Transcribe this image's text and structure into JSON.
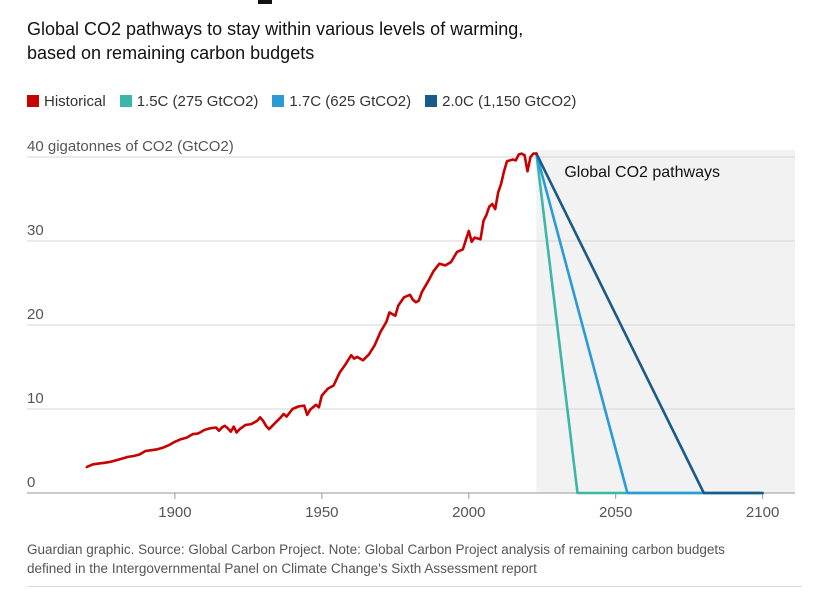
{
  "header": {
    "title_line1": "Global CO2 pathways to stay within various levels of warming,",
    "title_line2": "based on remaining carbon budgets"
  },
  "legend": [
    {
      "label": "Historical",
      "color": "#c70000"
    },
    {
      "label": "1.5C (275 GtCO2)",
      "color": "#3bb7a8"
    },
    {
      "label": "1.7C (625 GtCO2)",
      "color": "#2b9bd6"
    },
    {
      "label": "2.0C (1,150 GtCO2)",
      "color": "#1a5a8a"
    }
  ],
  "footer": {
    "line1": "Guardian graphic. Source: Global Carbon Project. Note: Global Carbon Project analysis of remaining carbon budgets",
    "line2": "defined in the Intergovernmental Panel on Climate Change's Sixth Assessment report"
  },
  "chart_data": {
    "type": "line",
    "ylabel": "40 gigatonnes of CO2 (GtCO2)",
    "y_ticks": [
      {
        "value": 40,
        "label": "40 gigatonnes of CO2 (GtCO2)"
      },
      {
        "value": 30,
        "label": "30"
      },
      {
        "value": 20,
        "label": "20"
      },
      {
        "value": 10,
        "label": "10"
      },
      {
        "value": 0,
        "label": "0"
      }
    ],
    "x_ticks": [
      {
        "value": 1900,
        "label": "1900"
      },
      {
        "value": 1950,
        "label": "1950"
      },
      {
        "value": 2000,
        "label": "2000"
      },
      {
        "value": 2050,
        "label": "2050"
      },
      {
        "value": 2100,
        "label": "2100"
      }
    ],
    "xlim": [
      1850,
      2110
    ],
    "ylim": [
      0,
      40
    ],
    "grid": true,
    "shaded_region": {
      "x_start": 2023,
      "x_end": 2110,
      "label": "Global CO2 pathways",
      "color": "#f2f2f2"
    },
    "series": [
      {
        "name": "Historical",
        "color": "#c70000",
        "points": [
          [
            1870,
            3.1
          ],
          [
            1872,
            3.4
          ],
          [
            1874,
            3.5
          ],
          [
            1876,
            3.6
          ],
          [
            1878,
            3.7
          ],
          [
            1880,
            3.9
          ],
          [
            1882,
            4.1
          ],
          [
            1884,
            4.3
          ],
          [
            1886,
            4.4
          ],
          [
            1888,
            4.6
          ],
          [
            1890,
            5.0
          ],
          [
            1892,
            5.1
          ],
          [
            1894,
            5.2
          ],
          [
            1896,
            5.4
          ],
          [
            1898,
            5.7
          ],
          [
            1900,
            6.1
          ],
          [
            1902,
            6.4
          ],
          [
            1904,
            6.6
          ],
          [
            1906,
            7.0
          ],
          [
            1908,
            7.1
          ],
          [
            1910,
            7.5
          ],
          [
            1912,
            7.7
          ],
          [
            1914,
            7.8
          ],
          [
            1915,
            7.4
          ],
          [
            1916,
            7.8
          ],
          [
            1917,
            8.0
          ],
          [
            1918,
            7.7
          ],
          [
            1919,
            7.3
          ],
          [
            1920,
            7.9
          ],
          [
            1921,
            7.2
          ],
          [
            1922,
            7.6
          ],
          [
            1924,
            8.1
          ],
          [
            1926,
            8.2
          ],
          [
            1928,
            8.6
          ],
          [
            1929,
            9.0
          ],
          [
            1930,
            8.6
          ],
          [
            1931,
            8.0
          ],
          [
            1932,
            7.6
          ],
          [
            1934,
            8.3
          ],
          [
            1936,
            9.0
          ],
          [
            1937,
            9.4
          ],
          [
            1938,
            9.1
          ],
          [
            1940,
            10.0
          ],
          [
            1942,
            10.3
          ],
          [
            1944,
            10.4
          ],
          [
            1945,
            9.3
          ],
          [
            1946,
            9.9
          ],
          [
            1948,
            10.5
          ],
          [
            1949,
            10.2
          ],
          [
            1950,
            11.6
          ],
          [
            1952,
            12.4
          ],
          [
            1954,
            12.8
          ],
          [
            1956,
            14.3
          ],
          [
            1958,
            15.3
          ],
          [
            1960,
            16.4
          ],
          [
            1961,
            16.0
          ],
          [
            1962,
            16.2
          ],
          [
            1964,
            15.8
          ],
          [
            1966,
            16.5
          ],
          [
            1968,
            17.6
          ],
          [
            1970,
            19.2
          ],
          [
            1972,
            20.4
          ],
          [
            1973,
            21.5
          ],
          [
            1974,
            21.3
          ],
          [
            1975,
            21.1
          ],
          [
            1976,
            22.3
          ],
          [
            1978,
            23.3
          ],
          [
            1980,
            23.6
          ],
          [
            1981,
            23.0
          ],
          [
            1982,
            22.7
          ],
          [
            1983,
            22.9
          ],
          [
            1984,
            23.9
          ],
          [
            1986,
            25.1
          ],
          [
            1988,
            26.4
          ],
          [
            1990,
            27.3
          ],
          [
            1992,
            27.1
          ],
          [
            1994,
            27.5
          ],
          [
            1996,
            28.7
          ],
          [
            1998,
            29.0
          ],
          [
            1999,
            30.1
          ],
          [
            2000,
            31.2
          ],
          [
            2001,
            29.9
          ],
          [
            2002,
            30.4
          ],
          [
            2004,
            30.2
          ],
          [
            2005,
            32.4
          ],
          [
            2006,
            33.1
          ],
          [
            2007,
            34.1
          ],
          [
            2008,
            34.4
          ],
          [
            2009,
            33.8
          ],
          [
            2010,
            35.8
          ],
          [
            2011,
            36.8
          ],
          [
            2012,
            38.3
          ],
          [
            2013,
            39.5
          ],
          [
            2014,
            39.6
          ],
          [
            2015,
            39.7
          ],
          [
            2016,
            39.6
          ],
          [
            2017,
            40.3
          ],
          [
            2018,
            40.4
          ],
          [
            2019,
            40.2
          ],
          [
            2020,
            38.3
          ],
          [
            2021,
            40.0
          ],
          [
            2022,
            40.4
          ],
          [
            2023,
            40.4
          ]
        ]
      },
      {
        "name": "1.5C (275 GtCO2)",
        "color": "#3bb7a8",
        "points": [
          [
            2023,
            40.4
          ],
          [
            2037,
            0
          ],
          [
            2100,
            0
          ]
        ]
      },
      {
        "name": "1.7C (625 GtCO2)",
        "color": "#2b9bd6",
        "points": [
          [
            2023,
            40.4
          ],
          [
            2054,
            0
          ],
          [
            2100,
            0
          ]
        ]
      },
      {
        "name": "2.0C (1,150 GtCO2)",
        "color": "#1a5a8a",
        "points": [
          [
            2023,
            40.4
          ],
          [
            2080,
            0
          ],
          [
            2100,
            0
          ]
        ]
      }
    ]
  }
}
